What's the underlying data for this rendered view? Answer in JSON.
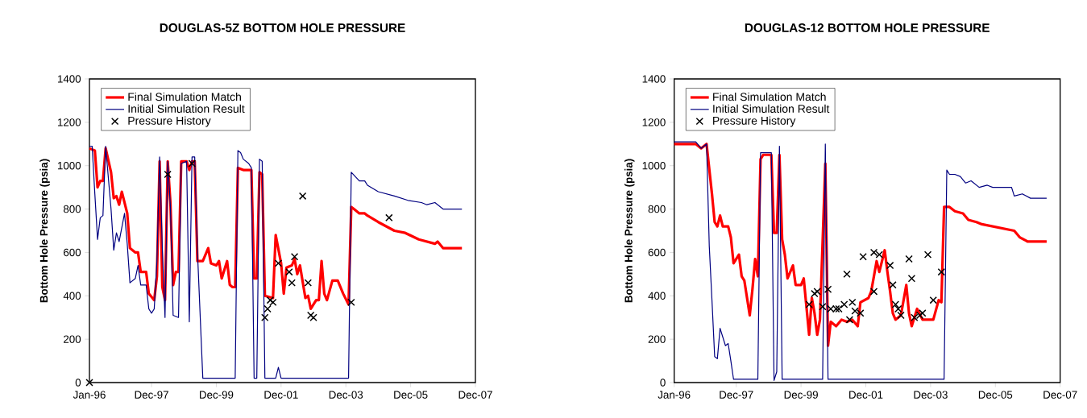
{
  "chart_data": [
    {
      "type": "line",
      "title": "DOUGLAS-5Z BOTTOM HOLE PRESSURE",
      "ylabel": "Bottom Hole Pressure (psia)",
      "xlim": [
        "1996-01",
        "2007-12"
      ],
      "ylim": [
        0,
        1400
      ],
      "yticks": [
        0,
        200,
        400,
        600,
        800,
        1000,
        1200,
        1400
      ],
      "xticks": [
        {
          "value": "1996-01",
          "label": "Jan-96"
        },
        {
          "value": "1997-12",
          "label": "Dec-97"
        },
        {
          "value": "1999-12",
          "label": "Dec-99"
        },
        {
          "value": "2001-12",
          "label": "Dec-01"
        },
        {
          "value": "2003-12",
          "label": "Dec-03"
        },
        {
          "value": "2005-12",
          "label": "Dec-05"
        },
        {
          "value": "2007-12",
          "label": "Dec-07"
        }
      ],
      "legend": "top left",
      "series": [
        {
          "name": "Final Simulation Match",
          "color": "#ff0000",
          "x": [
            "1996-01",
            "1996-03",
            "1996-04",
            "1996-05",
            "1996-06",
            "1996-07",
            "1996-09",
            "1996-10",
            "1996-11",
            "1996-12",
            "1997-01",
            "1997-03",
            "1997-04",
            "1997-06",
            "1997-07",
            "1997-08",
            "1997-10",
            "1997-11",
            "1998-01",
            "1998-02",
            "1998-03",
            "1998-04",
            "1998-05",
            "1998-06",
            "1998-07",
            "1998-08",
            "1998-09",
            "1998-10",
            "1998-11",
            "1999-01",
            "1999-02",
            "1999-03",
            "1999-04",
            "1999-05",
            "1999-07",
            "1999-09",
            "1999-10",
            "1999-12",
            "2000-01",
            "2000-02",
            "2000-04",
            "2000-05",
            "2000-06",
            "2000-07",
            "2000-08",
            "2000-10",
            "2001-01",
            "2001-02",
            "2001-03",
            "2001-04",
            "2001-05",
            "2001-06",
            "2001-09",
            "2001-10",
            "2001-12",
            "2002-01",
            "2002-02",
            "2002-04",
            "2002-05",
            "2002-06",
            "2002-07",
            "2002-09",
            "2002-10",
            "2002-11",
            "2003-01",
            "2003-02",
            "2003-03",
            "2003-04",
            "2003-05",
            "2003-07",
            "2003-09",
            "2003-11",
            "2004-01",
            "2004-02",
            "2004-03",
            "2004-05",
            "2004-07",
            "2004-08",
            "2004-12",
            "2005-03",
            "2005-06",
            "2005-10",
            "2006-03",
            "2006-06",
            "2006-09",
            "2006-10",
            "2006-12",
            "2007-07"
          ],
          "values": [
            1080,
            1070,
            900,
            930,
            930,
            1080,
            970,
            850,
            860,
            820,
            880,
            780,
            620,
            600,
            600,
            510,
            510,
            410,
            380,
            490,
            1020,
            440,
            380,
            1020,
            830,
            450,
            510,
            510,
            1020,
            1020,
            980,
            1020,
            1020,
            560,
            560,
            620,
            550,
            540,
            560,
            480,
            560,
            450,
            440,
            440,
            990,
            980,
            980,
            480,
            480,
            970,
            960,
            400,
            390,
            680,
            550,
            410,
            530,
            540,
            570,
            500,
            540,
            390,
            400,
            340,
            380,
            380,
            560,
            410,
            380,
            470,
            470,
            410,
            360,
            810,
            800,
            780,
            780,
            770,
            740,
            720,
            700,
            690,
            660,
            650,
            640,
            650,
            620,
            620
          ]
        },
        {
          "name": "Initial Simulation Result",
          "color": "#000080",
          "x": [
            "1996-01",
            "1996-02",
            "1996-03",
            "1996-04",
            "1996-05",
            "1996-06",
            "1996-07",
            "1996-09",
            "1996-10",
            "1996-11",
            "1996-12",
            "1997-02",
            "1997-03",
            "1997-04",
            "1997-06",
            "1997-07",
            "1997-08",
            "1997-10",
            "1997-11",
            "1997-12",
            "1998-01",
            "1998-02",
            "1998-03",
            "1998-04",
            "1998-05",
            "1998-06",
            "1998-07",
            "1998-08",
            "1998-10",
            "1998-11",
            "1999-01",
            "1999-02",
            "1999-03",
            "1999-04",
            "1999-05",
            "1999-07",
            "2000-07",
            "2000-08",
            "2000-09",
            "2000-10",
            "2000-12",
            "2001-01",
            "2001-02",
            "2001-03",
            "2001-04",
            "2001-05",
            "2001-06",
            "2001-10",
            "2001-11",
            "2001-12",
            "2004-01",
            "2004-02",
            "2004-05",
            "2004-06",
            "2004-07",
            "2004-08",
            "2004-12",
            "2005-06",
            "2005-11",
            "2006-04",
            "2006-06",
            "2006-09",
            "2006-12",
            "2007-07"
          ],
          "values": [
            1090,
            1090,
            870,
            660,
            760,
            770,
            1090,
            800,
            610,
            690,
            650,
            780,
            640,
            460,
            480,
            540,
            450,
            450,
            340,
            320,
            340,
            560,
            1040,
            620,
            300,
            1020,
            810,
            310,
            300,
            1010,
            1020,
            280,
            1040,
            1040,
            610,
            20,
            20,
            1070,
            1060,
            1030,
            1010,
            990,
            20,
            20,
            1030,
            1020,
            20,
            20,
            70,
            20,
            20,
            970,
            930,
            930,
            930,
            910,
            880,
            860,
            840,
            830,
            820,
            830,
            800,
            800
          ]
        },
        {
          "name": "Pressure History",
          "type": "scatter",
          "marker": "cross",
          "color": "#000000",
          "x": [
            "1996-01",
            "1998-06",
            "1999-03",
            "2001-06",
            "2001-07",
            "2001-08",
            "2001-09",
            "2001-11",
            "2002-03",
            "2002-04",
            "2002-05",
            "2002-08",
            "2002-10",
            "2002-11",
            "2002-12",
            "2004-02",
            "2005-04"
          ],
          "values": [
            0,
            960,
            1010,
            300,
            340,
            380,
            370,
            550,
            510,
            460,
            580,
            860,
            460,
            310,
            300,
            370,
            760
          ]
        }
      ]
    },
    {
      "type": "line",
      "title": "DOUGLAS-12 BOTTOM HOLE PRESSURE",
      "ylabel": "Bottom Hole Pressure (psia)",
      "xlim": [
        "1996-01",
        "2007-12"
      ],
      "ylim": [
        0,
        1400
      ],
      "yticks": [
        0,
        200,
        400,
        600,
        800,
        1000,
        1200,
        1400
      ],
      "xticks": [
        {
          "value": "1996-01",
          "label": "Jan-96"
        },
        {
          "value": "1997-12",
          "label": "Dec-97"
        },
        {
          "value": "1999-12",
          "label": "Dec-99"
        },
        {
          "value": "2001-12",
          "label": "Dec-01"
        },
        {
          "value": "2003-12",
          "label": "Dec-03"
        },
        {
          "value": "2005-12",
          "label": "Dec-05"
        },
        {
          "value": "2007-12",
          "label": "Dec-07"
        }
      ],
      "legend": "top left",
      "series": [
        {
          "name": "Final Simulation Match",
          "color": "#ff0000",
          "x": [
            "1996-01",
            "1996-03",
            "1996-05",
            "1996-09",
            "1996-11",
            "1997-01",
            "1997-03",
            "1997-04",
            "1997-05",
            "1997-06",
            "1997-07",
            "1997-09",
            "1997-10",
            "1997-11",
            "1998-01",
            "1998-02",
            "1998-03",
            "1998-05",
            "1998-06",
            "1998-07",
            "1998-08",
            "1998-09",
            "1998-10",
            "1999-01",
            "1999-02",
            "1999-03",
            "1999-04",
            "1999-05",
            "1999-06",
            "1999-07",
            "1999-09",
            "1999-10",
            "1999-12",
            "2000-01",
            "2000-02",
            "2000-03",
            "2000-04",
            "2000-05",
            "2000-06",
            "2000-07",
            "2000-09",
            "2000-10",
            "2000-11",
            "2001-01",
            "2001-03",
            "2001-05",
            "2001-07",
            "2001-09",
            "2001-10",
            "2002-01",
            "2002-02",
            "2002-04",
            "2002-05",
            "2002-07",
            "2002-08",
            "2002-09",
            "2002-10",
            "2002-11",
            "2003-01",
            "2003-03",
            "2003-04",
            "2003-05",
            "2003-07",
            "2003-09",
            "2003-11",
            "2004-01",
            "2004-03",
            "2004-04",
            "2004-05",
            "2004-07",
            "2004-09",
            "2004-12",
            "2005-02",
            "2005-05",
            "2005-07",
            "2005-11",
            "2006-03",
            "2006-07",
            "2006-09",
            "2006-12",
            "2007-07"
          ],
          "values": [
            1100,
            1100,
            1100,
            1100,
            1080,
            1100,
            870,
            740,
            720,
            770,
            720,
            720,
            670,
            550,
            590,
            490,
            470,
            310,
            430,
            570,
            490,
            1030,
            1050,
            1050,
            690,
            690,
            1050,
            660,
            590,
            480,
            540,
            450,
            450,
            480,
            350,
            220,
            390,
            320,
            220,
            290,
            1010,
            170,
            280,
            260,
            290,
            280,
            290,
            260,
            370,
            390,
            420,
            560,
            510,
            610,
            510,
            420,
            320,
            290,
            310,
            450,
            320,
            260,
            340,
            290,
            290,
            290,
            380,
            370,
            810,
            810,
            790,
            780,
            750,
            740,
            730,
            720,
            710,
            700,
            670,
            650,
            650
          ]
        },
        {
          "name": "Initial Simulation Result",
          "color": "#000080",
          "x": [
            "1996-01",
            "1996-09",
            "1996-11",
            "1997-01",
            "1997-02",
            "1997-03",
            "1997-04",
            "1997-05",
            "1997-06",
            "1997-08",
            "1997-09",
            "1997-10",
            "1997-11",
            "1998-08",
            "1998-09",
            "1999-01",
            "1999-02",
            "1999-03",
            "1999-04",
            "1999-05",
            "2000-08",
            "2000-09",
            "2000-10",
            "2004-05",
            "2004-06",
            "2004-07",
            "2004-09",
            "2004-11",
            "2005-01",
            "2005-03",
            "2005-06",
            "2005-09",
            "2005-11",
            "2006-06",
            "2006-07",
            "2006-10",
            "2007-01",
            "2007-07"
          ],
          "values": [
            1110,
            1110,
            1080,
            1100,
            630,
            380,
            120,
            110,
            250,
            170,
            180,
            100,
            15,
            15,
            1060,
            1060,
            10,
            50,
            1090,
            15,
            15,
            1100,
            15,
            15,
            980,
            960,
            960,
            950,
            920,
            930,
            900,
            910,
            900,
            900,
            860,
            870,
            850,
            850
          ]
        },
        {
          "name": "Pressure History",
          "type": "scatter",
          "marker": "cross",
          "color": "#000000",
          "x": [
            "2000-03",
            "2000-05",
            "2000-06",
            "2000-08",
            "2000-10",
            "2000-11",
            "2001-01",
            "2001-02",
            "2001-04",
            "2001-05",
            "2001-06",
            "2001-07",
            "2001-08",
            "2001-10",
            "2001-11",
            "2002-03",
            "2002-03",
            "2002-05",
            "2002-09",
            "2002-10",
            "2002-11",
            "2002-12",
            "2003-01",
            "2003-04",
            "2003-05",
            "2003-06",
            "2003-08",
            "2003-09",
            "2003-11",
            "2004-01",
            "2004-04"
          ],
          "values": [
            360,
            410,
            420,
            350,
            430,
            340,
            340,
            340,
            360,
            500,
            290,
            370,
            330,
            320,
            580,
            420,
            600,
            590,
            540,
            450,
            360,
            340,
            310,
            570,
            480,
            300,
            310,
            320,
            590,
            380,
            510
          ]
        }
      ]
    }
  ]
}
